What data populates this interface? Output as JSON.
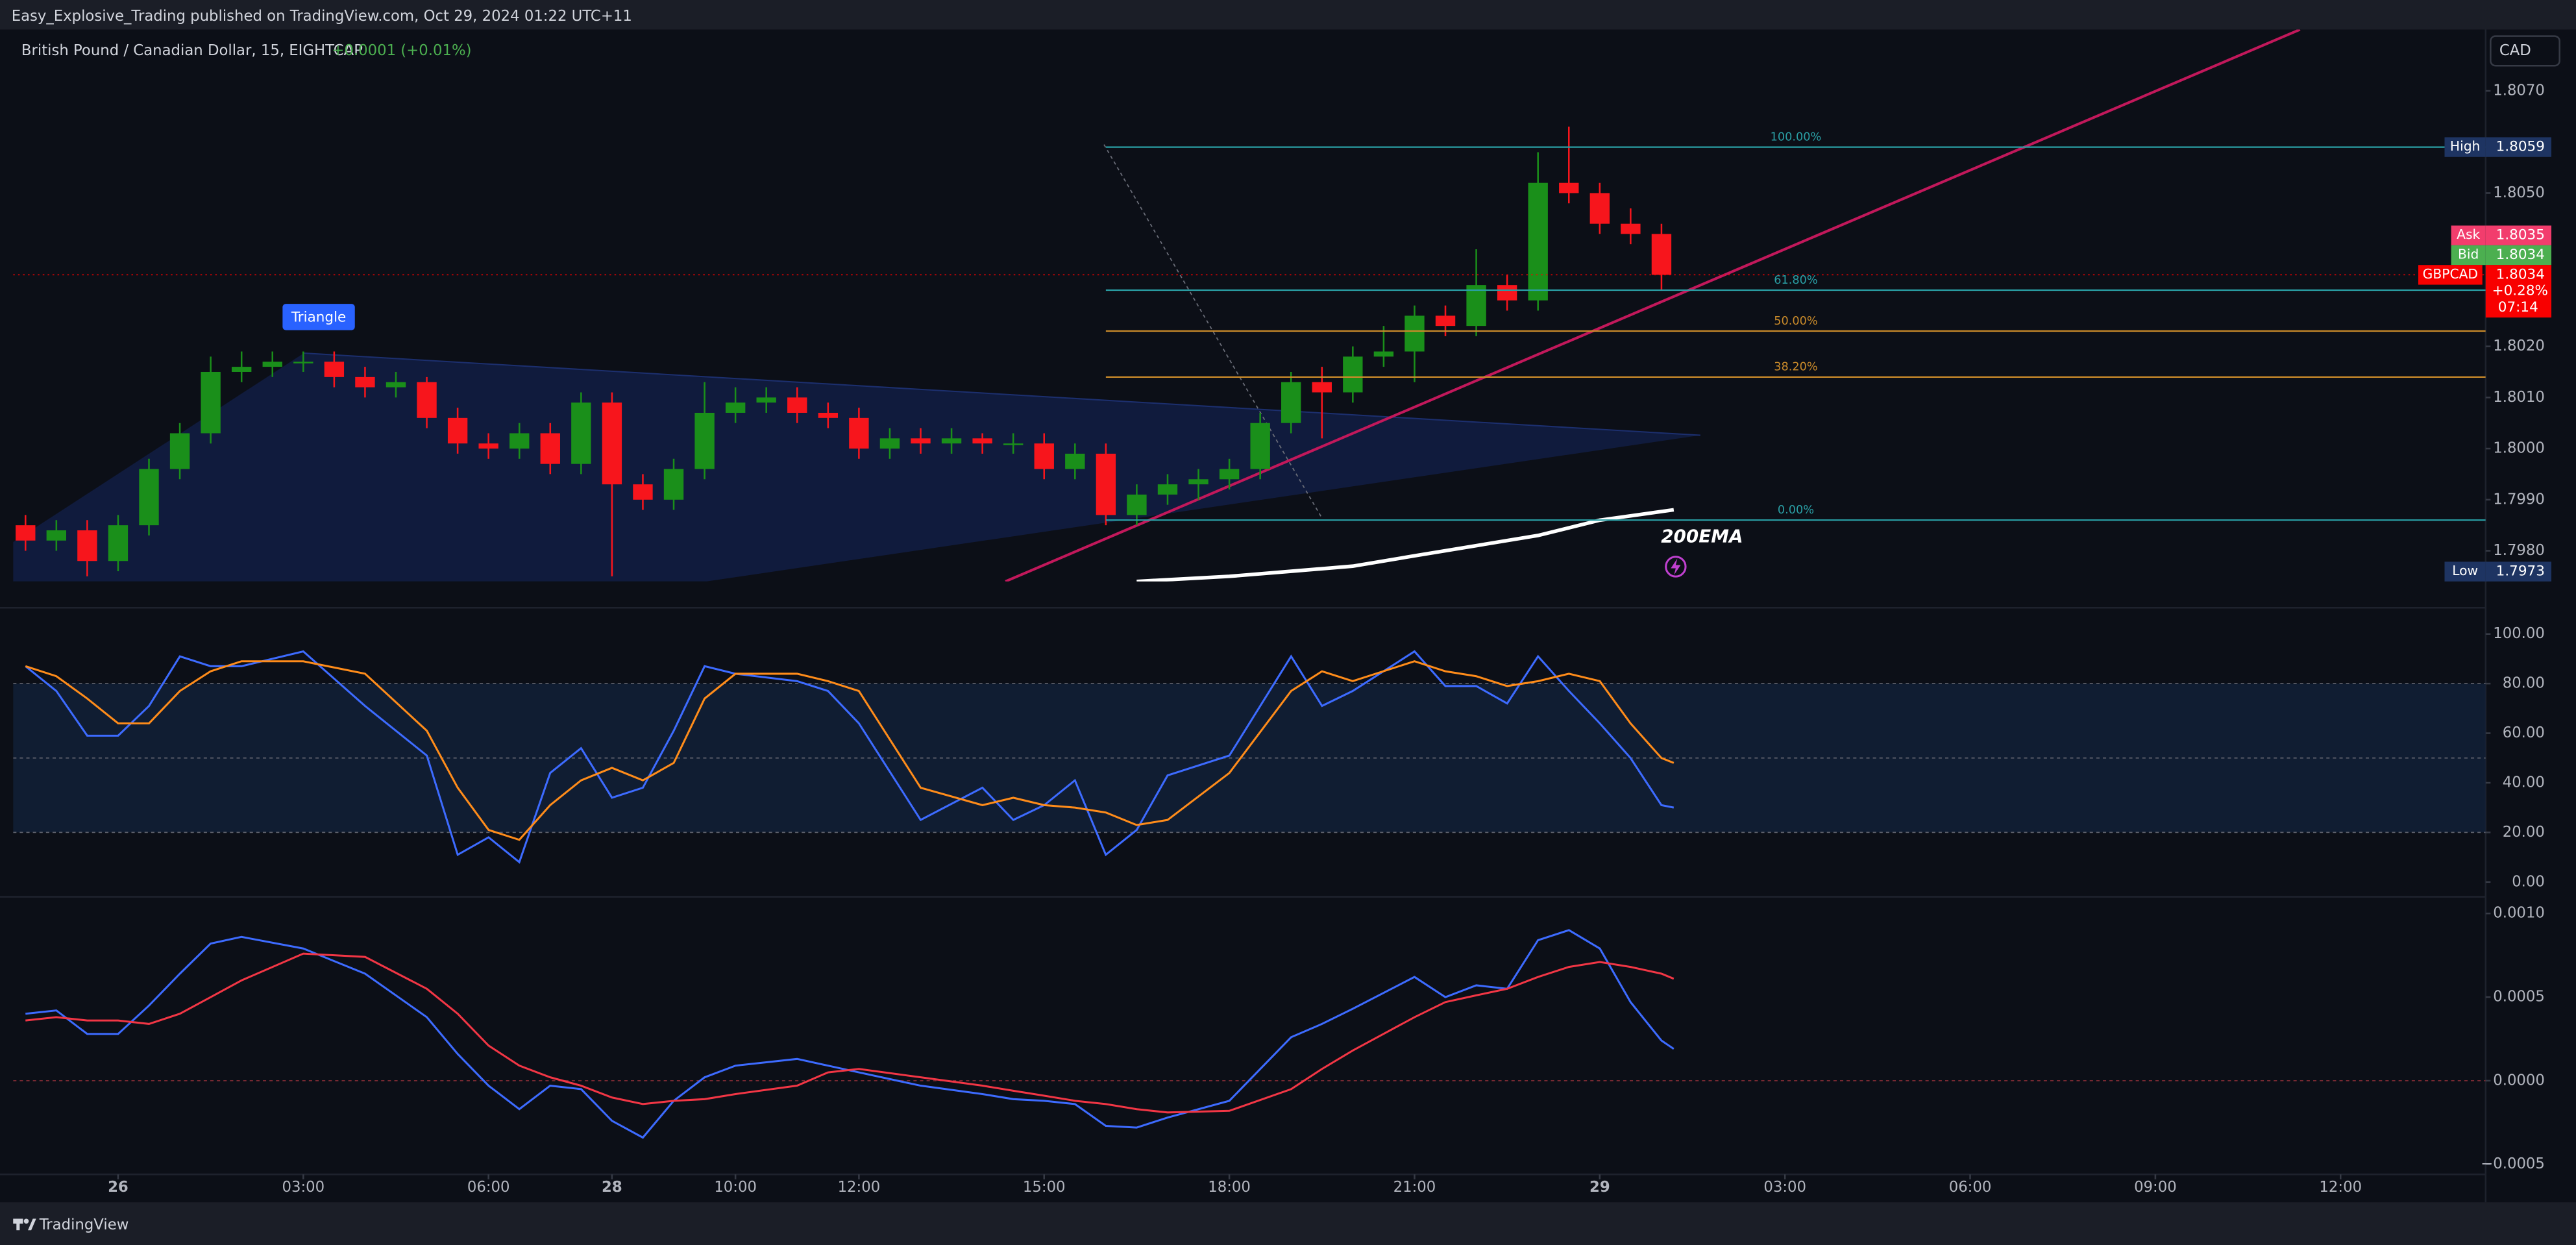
{
  "header": {
    "text": "Easy_Explosive_Trading published on TradingView.com, Oct 29, 2024 01:22 UTC+11"
  },
  "footer": {
    "brand": "TradingView"
  },
  "chart_data": [
    {
      "type": "candlestick",
      "title": "British Pound / Canadian Dollar, 15, EIGHTCAP",
      "change": "+0.0001 (+0.01%)",
      "currency": "CAD",
      "up_color": "#1a8f1a",
      "down_color": "#f7151c",
      "xlim": [
        -1.7,
        38.35
      ],
      "xticks": [
        {
          "value": 0,
          "label": "26"
        },
        {
          "value": 3,
          "label": "03:00"
        },
        {
          "value": 6,
          "label": "06:00"
        },
        {
          "value": 8,
          "label": "28"
        },
        {
          "value": 10,
          "label": "10:00"
        },
        {
          "value": 12,
          "label": "12:00"
        },
        {
          "value": 15,
          "label": "15:00"
        },
        {
          "value": 18,
          "label": "18:00"
        },
        {
          "value": 21,
          "label": "21:00"
        },
        {
          "value": 24,
          "label": "29"
        },
        {
          "value": 27,
          "label": "03:00"
        },
        {
          "value": 30,
          "label": "06:00"
        },
        {
          "value": 33,
          "label": "09:00"
        },
        {
          "value": 36,
          "label": "12:00"
        }
      ],
      "ylim": [
        1.7974,
        1.8082
      ],
      "yticks": [
        {
          "value": 1.798,
          "label": "1.7980"
        },
        {
          "value": 1.799,
          "label": "1.7990"
        },
        {
          "value": 1.8,
          "label": "1.8000"
        },
        {
          "value": 1.801,
          "label": "1.8010"
        },
        {
          "value": 1.802,
          "label": "1.8020"
        },
        {
          "value": 1.805,
          "label": "1.8050"
        },
        {
          "value": 1.807,
          "label": "1.8070"
        }
      ],
      "x": [
        -1.5,
        -1,
        -0.5,
        0,
        0.5,
        1,
        1.5,
        2,
        2.5,
        3,
        3.5,
        4,
        4.5,
        5,
        5.5,
        6,
        6.5,
        7,
        7.5,
        8,
        8.5,
        9,
        9.5,
        10,
        10.5,
        11,
        11.5,
        12,
        12.5,
        13,
        13.5,
        14,
        14.5,
        15,
        15.5,
        16,
        16.5,
        17,
        17.5,
        18,
        18.5,
        19,
        19.5,
        20,
        20.5,
        21,
        21.5,
        22,
        22.5,
        23,
        23.5,
        24,
        24.5,
        25
      ],
      "open": [
        1.7985,
        1.7982,
        1.7984,
        1.7978,
        1.7985,
        1.7996,
        1.8003,
        1.8015,
        1.8016,
        1.8017,
        1.8017,
        1.8014,
        1.8012,
        1.8013,
        1.8006,
        1.8001,
        1.8,
        1.8003,
        1.7997,
        1.8009,
        1.7993,
        1.799,
        1.7996,
        1.8007,
        1.8009,
        1.801,
        1.8007,
        1.8006,
        1.8,
        1.8002,
        1.8001,
        1.8002,
        1.8001,
        1.8001,
        1.7996,
        1.7999,
        1.7987,
        1.7991,
        1.7993,
        1.7994,
        1.7996,
        1.8005,
        1.8013,
        1.8011,
        1.8018,
        1.8019,
        1.8026,
        1.8024,
        1.8032,
        1.8029,
        1.8052,
        1.805,
        1.8044,
        1.8042
      ],
      "high": [
        1.7987,
        1.7986,
        1.7986,
        1.7987,
        1.7998,
        1.8005,
        1.8018,
        1.8019,
        1.8019,
        1.8019,
        1.8019,
        1.8016,
        1.8015,
        1.8014,
        1.8008,
        1.8003,
        1.8005,
        1.8005,
        1.8011,
        1.8011,
        1.7995,
        1.7998,
        1.8013,
        1.8012,
        1.8012,
        1.8012,
        1.8009,
        1.8008,
        1.8004,
        1.8004,
        1.8004,
        1.8003,
        1.8003,
        1.8003,
        1.8001,
        1.8001,
        1.7993,
        1.7995,
        1.7996,
        1.7998,
        1.8007,
        1.8015,
        1.8016,
        1.802,
        1.8024,
        1.8028,
        1.8028,
        1.8039,
        1.8034,
        1.8058,
        1.8063,
        1.8052,
        1.8047,
        1.8044
      ],
      "low": [
        1.798,
        1.798,
        1.7975,
        1.7976,
        1.7983,
        1.7994,
        1.8001,
        1.8013,
        1.8014,
        1.8015,
        1.8012,
        1.801,
        1.801,
        1.8004,
        1.7999,
        1.7998,
        1.7998,
        1.7995,
        1.7995,
        1.7975,
        1.7988,
        1.7988,
        1.7994,
        1.8005,
        1.8007,
        1.8005,
        1.8004,
        1.7998,
        1.7998,
        1.7999,
        1.7999,
        1.7999,
        1.7999,
        1.7994,
        1.7994,
        1.7985,
        1.7985,
        1.7989,
        1.799,
        1.7992,
        1.7994,
        1.8003,
        1.8002,
        1.8009,
        1.8016,
        1.8013,
        1.8022,
        1.8022,
        1.8027,
        1.8027,
        1.8048,
        1.8042,
        1.804,
        1.8031
      ],
      "close": [
        1.7982,
        1.7984,
        1.7978,
        1.7985,
        1.7996,
        1.8003,
        1.8015,
        1.8016,
        1.8017,
        1.8017,
        1.8014,
        1.8012,
        1.8013,
        1.8006,
        1.8001,
        1.8,
        1.8003,
        1.7997,
        1.8009,
        1.7993,
        1.799,
        1.7996,
        1.8007,
        1.8009,
        1.801,
        1.8007,
        1.8006,
        1.8,
        1.8002,
        1.8001,
        1.8002,
        1.8001,
        1.8001,
        1.7996,
        1.7999,
        1.7987,
        1.7991,
        1.7993,
        1.7994,
        1.7996,
        1.8005,
        1.8013,
        1.8011,
        1.8018,
        1.8019,
        1.8026,
        1.8024,
        1.8032,
        1.8029,
        1.8052,
        1.805,
        1.8044,
        1.8042,
        1.8034
      ],
      "ema": {
        "name": "200EMA",
        "color": "#ffffff",
        "x": [
          16.5,
          18,
          19,
          20,
          21,
          22,
          23,
          24,
          25.2
        ],
        "values": [
          1.7974,
          1.7975,
          1.7976,
          1.7977,
          1.7979,
          1.7981,
          1.7983,
          1.7986,
          1.7988
        ]
      },
      "fib": {
        "x": 16,
        "levels": [
          {
            "label": "100.00%",
            "price": 1.8059,
            "color": "#2a9fa5"
          },
          {
            "label": "61.80%",
            "price": 1.8031,
            "color": "#2a9fa5"
          },
          {
            "label": "50.00%",
            "price": 1.8023,
            "color": "#c98a2a"
          },
          {
            "label": "38.20%",
            "price": 1.8014,
            "color": "#c98a2a"
          },
          {
            "label": "0.00%",
            "price": 1.7986,
            "color": "#2a9fa5"
          }
        ]
      },
      "drawing_label": "Triangle",
      "markers": [
        {
          "name": "High",
          "value": 1.8059,
          "color": "#1e3462"
        },
        {
          "name": "Ask",
          "value": 1.8035,
          "color": "#f23d6d"
        },
        {
          "name": "Bid",
          "value": 1.8034,
          "color": "#4caf50"
        },
        {
          "name": "Low",
          "value": 1.7973,
          "color": "#1e3462"
        }
      ],
      "last": {
        "name": "GBPCAD",
        "value": 1.8034,
        "change": "+0.28%",
        "countdown": "07:14",
        "color": "#f80000"
      }
    },
    {
      "type": "line",
      "ylim": [
        -5.3,
        105.3
      ],
      "yticks": [
        {
          "value": 0,
          "label": "0.00"
        },
        {
          "value": 20,
          "label": "20.00"
        },
        {
          "value": 40,
          "label": "40.00"
        },
        {
          "value": 60,
          "label": "60.00"
        },
        {
          "value": 80,
          "label": "80.00"
        },
        {
          "value": 100,
          "label": "100.00"
        }
      ],
      "band": [
        20,
        80
      ],
      "levels": [
        20,
        50,
        80
      ],
      "level_color": "#5d606b",
      "x": [
        -1.5,
        -1,
        -0.5,
        0,
        0.5,
        1,
        1.5,
        2,
        3,
        4,
        5,
        5.5,
        6,
        6.5,
        7,
        7.5,
        8,
        8.5,
        9,
        9.5,
        10,
        11,
        11.5,
        12,
        13,
        14,
        14.5,
        15,
        15.5,
        16,
        16.5,
        17,
        18,
        19,
        19.5,
        20,
        21,
        21.5,
        22,
        22.5,
        23,
        23.5,
        24,
        24.5,
        25,
        25.2
      ],
      "series": [
        {
          "color": "#3d6bff",
          "values": [
            87,
            77,
            59,
            59,
            71,
            91,
            87,
            87,
            93,
            71,
            51,
            11,
            18,
            8,
            44,
            54,
            34,
            38,
            61,
            87,
            84,
            81,
            77,
            64,
            25,
            38,
            25,
            31,
            41,
            11,
            21,
            43,
            51,
            91,
            71,
            77,
            93,
            79,
            79,
            72,
            91,
            77,
            64,
            50,
            31,
            30
          ]
        },
        {
          "color": "#ff8c1a",
          "values": [
            87,
            83,
            74,
            64,
            64,
            77,
            85,
            89,
            89,
            84,
            61,
            38,
            21,
            17,
            31,
            41,
            46,
            41,
            48,
            74,
            84,
            84,
            81,
            77,
            38,
            31,
            34,
            31,
            30,
            28,
            23,
            25,
            44,
            77,
            85,
            81,
            89,
            85,
            83,
            79,
            81,
            84,
            81,
            64,
            50,
            48
          ]
        }
      ]
    },
    {
      "type": "line",
      "ylim": [
        -0.00056,
        0.00108
      ],
      "yticks": [
        {
          "value": -0.0005,
          "label": "−0.0005"
        },
        {
          "value": 0,
          "label": "0.0000"
        },
        {
          "value": 0.0005,
          "label": "0.0005"
        },
        {
          "value": 0.001,
          "label": "0.0010"
        }
      ],
      "levels": [
        0
      ],
      "level_color": "#7a2a33",
      "x": [
        -1.5,
        -1,
        -0.5,
        0,
        0.5,
        1,
        1.5,
        2,
        3,
        4,
        5,
        5.5,
        6,
        6.5,
        7,
        7.5,
        8,
        8.5,
        9,
        9.5,
        10,
        11,
        11.5,
        12,
        13,
        14,
        14.5,
        15,
        15.5,
        16,
        16.5,
        17,
        18,
        19,
        19.5,
        20,
        21,
        21.5,
        22,
        22.5,
        23,
        23.5,
        24,
        24.5,
        25,
        25.2
      ],
      "series": [
        {
          "color": "#3d6bff",
          "values": [
            0.0004,
            0.00042,
            0.00028,
            0.00028,
            0.00045,
            0.00064,
            0.00082,
            0.00086,
            0.00079,
            0.00064,
            0.00038,
            0.00016,
            -3e-05,
            -0.00017,
            -3e-05,
            -5e-05,
            -0.00024,
            -0.00034,
            -0.00012,
            2e-05,
            9e-05,
            0.00013,
            9e-05,
            5e-05,
            -3e-05,
            -8e-05,
            -0.00011,
            -0.00012,
            -0.00014,
            -0.00027,
            -0.00028,
            -0.00022,
            -0.00012,
            0.00026,
            0.00034,
            0.00043,
            0.00062,
            0.0005,
            0.00057,
            0.00055,
            0.00084,
            0.0009,
            0.00079,
            0.00047,
            0.00024,
            0.00019
          ]
        },
        {
          "color": "#f23645",
          "values": [
            0.00036,
            0.00038,
            0.00036,
            0.00036,
            0.00034,
            0.0004,
            0.0005,
            0.0006,
            0.00076,
            0.00074,
            0.00055,
            0.0004,
            0.00021,
            9e-05,
            2e-05,
            -3e-05,
            -0.0001,
            -0.00014,
            -0.00012,
            -0.00011,
            -8e-05,
            -3e-05,
            5e-05,
            7e-05,
            2e-05,
            -3e-05,
            -6e-05,
            -9e-05,
            -0.00012,
            -0.00014,
            -0.00017,
            -0.00019,
            -0.00018,
            -5e-05,
            7e-05,
            0.00018,
            0.00038,
            0.00047,
            0.00051,
            0.00055,
            0.00062,
            0.00068,
            0.00071,
            0.00068,
            0.00064,
            0.00061
          ]
        }
      ]
    }
  ]
}
